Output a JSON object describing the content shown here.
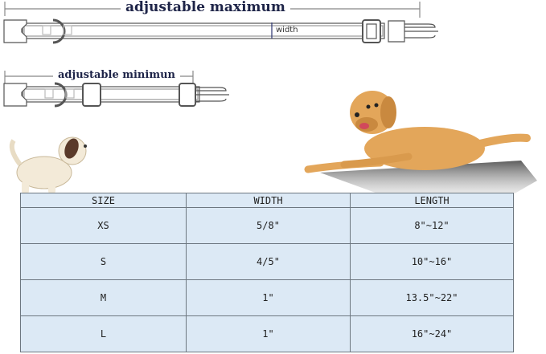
{
  "diagram": {
    "max_caption": "adjustable maximum",
    "min_caption": "adjustable minimun",
    "width_label": "width"
  },
  "table": {
    "headers": [
      "SIZE",
      "WIDTH",
      "LENGTH"
    ],
    "rows": [
      [
        "XS",
        "5/8\"",
        "8\"~12\""
      ],
      [
        "S",
        "4/5\"",
        "10\"~16\""
      ],
      [
        "M",
        "1\"",
        "13.5\"~22\""
      ],
      [
        "L",
        "1\"",
        "16\"~24\""
      ]
    ]
  },
  "colors": {
    "table_bg": "#dce9f5",
    "caption": "#1e2448",
    "dog_golden": "#e3a65a",
    "puppy": "#f3ead8"
  }
}
